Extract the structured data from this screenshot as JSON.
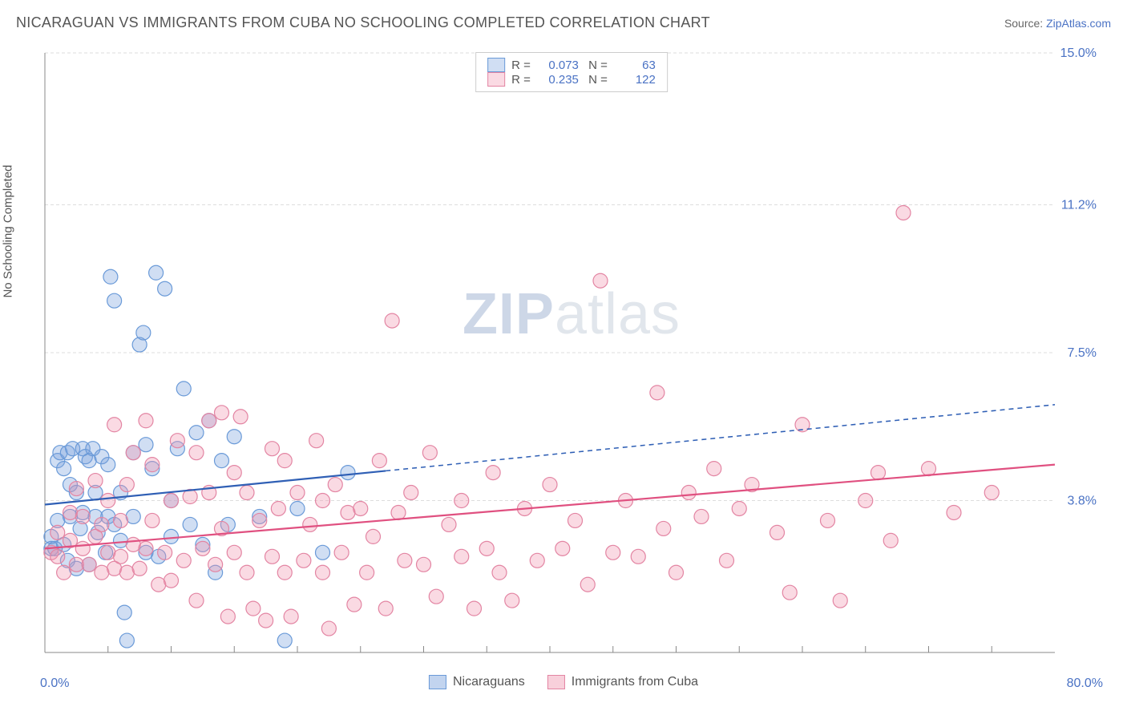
{
  "title": "NICARAGUAN VS IMMIGRANTS FROM CUBA NO SCHOOLING COMPLETED CORRELATION CHART",
  "source_label": "Source:",
  "source_name": "ZipAtlas.com",
  "y_axis_label": "No Schooling Completed",
  "watermark_bold": "ZIP",
  "watermark_light": "atlas",
  "chart": {
    "type": "scatter",
    "xlim": [
      0,
      80
    ],
    "ylim": [
      0,
      15
    ],
    "x_origin_label": "0.0%",
    "x_max_label": "80.0%",
    "y_ticks": [
      3.8,
      7.5,
      11.2,
      15.0
    ],
    "y_tick_labels": [
      "3.8%",
      "7.5%",
      "11.2%",
      "15.0%"
    ],
    "x_minor_ticks": [
      5,
      10,
      15,
      20,
      25,
      30,
      35,
      40,
      45,
      50,
      55,
      60,
      65,
      70,
      75
    ],
    "background_color": "#ffffff",
    "grid_color": "#dddddd",
    "axis_color": "#888888",
    "axis_label_color": "#4a72c4",
    "series": [
      {
        "name": "Nicaraguans",
        "color_fill": "rgba(120,160,220,0.35)",
        "color_stroke": "#6a9ad8",
        "r_value": "0.073",
        "n_value": "63",
        "marker_radius": 9,
        "trend": {
          "x1": 0,
          "y1": 3.7,
          "x2": 80,
          "y2": 6.2,
          "solid_until_x": 27,
          "color": "#2f5fb5",
          "width": 2.2,
          "dash": "6,5"
        },
        "points": [
          [
            0.5,
            2.6
          ],
          [
            0.5,
            2.9
          ],
          [
            0.8,
            2.6
          ],
          [
            1.0,
            4.8
          ],
          [
            1.0,
            3.3
          ],
          [
            1.2,
            5.0
          ],
          [
            1.5,
            2.7
          ],
          [
            1.5,
            4.6
          ],
          [
            1.8,
            2.3
          ],
          [
            1.8,
            5.0
          ],
          [
            2.0,
            4.2
          ],
          [
            2.0,
            3.4
          ],
          [
            2.2,
            5.1
          ],
          [
            2.5,
            4.0
          ],
          [
            2.5,
            2.1
          ],
          [
            2.8,
            3.1
          ],
          [
            3.0,
            5.1
          ],
          [
            3.0,
            3.5
          ],
          [
            3.2,
            4.9
          ],
          [
            3.5,
            2.2
          ],
          [
            3.5,
            4.8
          ],
          [
            3.8,
            5.1
          ],
          [
            4.0,
            3.4
          ],
          [
            4.0,
            4.0
          ],
          [
            4.2,
            3.0
          ],
          [
            4.5,
            4.9
          ],
          [
            4.8,
            2.5
          ],
          [
            5.0,
            3.4
          ],
          [
            5.0,
            4.7
          ],
          [
            5.2,
            9.4
          ],
          [
            5.5,
            8.8
          ],
          [
            5.5,
            3.2
          ],
          [
            6.0,
            4.0
          ],
          [
            6.0,
            2.8
          ],
          [
            6.3,
            1.0
          ],
          [
            6.5,
            0.3
          ],
          [
            7.0,
            3.4
          ],
          [
            7.0,
            5.0
          ],
          [
            7.5,
            7.7
          ],
          [
            7.8,
            8.0
          ],
          [
            8.0,
            2.5
          ],
          [
            8.0,
            5.2
          ],
          [
            8.5,
            4.6
          ],
          [
            8.8,
            9.5
          ],
          [
            9.0,
            2.4
          ],
          [
            9.5,
            9.1
          ],
          [
            10.0,
            3.8
          ],
          [
            10.0,
            2.9
          ],
          [
            10.5,
            5.1
          ],
          [
            11.0,
            6.6
          ],
          [
            11.5,
            3.2
          ],
          [
            12.0,
            5.5
          ],
          [
            12.5,
            2.7
          ],
          [
            13.0,
            5.8
          ],
          [
            13.5,
            2.0
          ],
          [
            14.0,
            4.8
          ],
          [
            14.5,
            3.2
          ],
          [
            15.0,
            5.4
          ],
          [
            17.0,
            3.4
          ],
          [
            19.0,
            0.3
          ],
          [
            20.0,
            3.6
          ],
          [
            22.0,
            2.5
          ],
          [
            24.0,
            4.5
          ]
        ]
      },
      {
        "name": "Immigrants from Cuba",
        "color_fill": "rgba(240,150,175,0.35)",
        "color_stroke": "#e385a3",
        "r_value": "0.235",
        "n_value": "122",
        "marker_radius": 9,
        "trend": {
          "x1": 0,
          "y1": 2.6,
          "x2": 80,
          "y2": 4.7,
          "solid_until_x": 80,
          "color": "#e05080",
          "width": 2.2,
          "dash": "0"
        },
        "points": [
          [
            0.5,
            2.5
          ],
          [
            1.0,
            3.0
          ],
          [
            1.0,
            2.4
          ],
          [
            1.5,
            2.0
          ],
          [
            2.0,
            2.8
          ],
          [
            2.0,
            3.5
          ],
          [
            2.5,
            2.2
          ],
          [
            2.5,
            4.1
          ],
          [
            3.0,
            2.6
          ],
          [
            3.0,
            3.4
          ],
          [
            3.5,
            2.2
          ],
          [
            4.0,
            2.9
          ],
          [
            4.0,
            4.3
          ],
          [
            4.5,
            2.0
          ],
          [
            4.5,
            3.2
          ],
          [
            5.0,
            2.5
          ],
          [
            5.0,
            3.8
          ],
          [
            5.5,
            2.1
          ],
          [
            5.5,
            5.7
          ],
          [
            6.0,
            2.4
          ],
          [
            6.0,
            3.3
          ],
          [
            6.5,
            4.2
          ],
          [
            6.5,
            2.0
          ],
          [
            7.0,
            2.7
          ],
          [
            7.0,
            5.0
          ],
          [
            7.5,
            2.1
          ],
          [
            8.0,
            2.6
          ],
          [
            8.0,
            5.8
          ],
          [
            8.5,
            3.3
          ],
          [
            8.5,
            4.7
          ],
          [
            9.0,
            1.7
          ],
          [
            9.5,
            2.5
          ],
          [
            10.0,
            3.8
          ],
          [
            10.0,
            1.8
          ],
          [
            10.5,
            5.3
          ],
          [
            11.0,
            2.3
          ],
          [
            11.5,
            3.9
          ],
          [
            12.0,
            1.3
          ],
          [
            12.0,
            5.0
          ],
          [
            12.5,
            2.6
          ],
          [
            13.0,
            4.0
          ],
          [
            13.0,
            5.8
          ],
          [
            13.5,
            2.2
          ],
          [
            14.0,
            3.1
          ],
          [
            14.0,
            6.0
          ],
          [
            14.5,
            0.9
          ],
          [
            15.0,
            4.5
          ],
          [
            15.0,
            2.5
          ],
          [
            15.5,
            5.9
          ],
          [
            16.0,
            2.0
          ],
          [
            16.0,
            4.0
          ],
          [
            16.5,
            1.1
          ],
          [
            17.0,
            3.3
          ],
          [
            17.5,
            0.8
          ],
          [
            18.0,
            2.4
          ],
          [
            18.0,
            5.1
          ],
          [
            18.5,
            3.6
          ],
          [
            19.0,
            2.0
          ],
          [
            19.0,
            4.8
          ],
          [
            19.5,
            0.9
          ],
          [
            20.0,
            4.0
          ],
          [
            20.5,
            2.3
          ],
          [
            21.0,
            3.2
          ],
          [
            21.5,
            5.3
          ],
          [
            22.0,
            2.0
          ],
          [
            22.0,
            3.8
          ],
          [
            22.5,
            0.6
          ],
          [
            23.0,
            4.2
          ],
          [
            23.5,
            2.5
          ],
          [
            24.0,
            3.5
          ],
          [
            24.5,
            1.2
          ],
          [
            25.0,
            3.6
          ],
          [
            25.5,
            2.0
          ],
          [
            26.0,
            2.9
          ],
          [
            26.5,
            4.8
          ],
          [
            27.0,
            1.1
          ],
          [
            27.5,
            8.3
          ],
          [
            28.0,
            3.5
          ],
          [
            28.5,
            2.3
          ],
          [
            29.0,
            4.0
          ],
          [
            30.0,
            2.2
          ],
          [
            30.5,
            5.0
          ],
          [
            31.0,
            1.4
          ],
          [
            32.0,
            3.2
          ],
          [
            33.0,
            2.4
          ],
          [
            33.0,
            3.8
          ],
          [
            34.0,
            1.1
          ],
          [
            35.0,
            2.6
          ],
          [
            35.5,
            4.5
          ],
          [
            36.0,
            2.0
          ],
          [
            37.0,
            1.3
          ],
          [
            38.0,
            3.6
          ],
          [
            39.0,
            2.3
          ],
          [
            40.0,
            4.2
          ],
          [
            41.0,
            2.6
          ],
          [
            42.0,
            3.3
          ],
          [
            43.0,
            1.7
          ],
          [
            44.0,
            9.3
          ],
          [
            45.0,
            2.5
          ],
          [
            46.0,
            3.8
          ],
          [
            47.0,
            2.4
          ],
          [
            48.5,
            6.5
          ],
          [
            49.0,
            3.1
          ],
          [
            50.0,
            2.0
          ],
          [
            51.0,
            4.0
          ],
          [
            52.0,
            3.4
          ],
          [
            53.0,
            4.6
          ],
          [
            54.0,
            2.3
          ],
          [
            55.0,
            3.6
          ],
          [
            56.0,
            4.2
          ],
          [
            58.0,
            3.0
          ],
          [
            59.0,
            1.5
          ],
          [
            60.0,
            5.7
          ],
          [
            62.0,
            3.3
          ],
          [
            63.0,
            1.3
          ],
          [
            65.0,
            3.8
          ],
          [
            66.0,
            4.5
          ],
          [
            67.0,
            2.8
          ],
          [
            68.0,
            11.0
          ],
          [
            70.0,
            4.6
          ],
          [
            72.0,
            3.5
          ],
          [
            75.0,
            4.0
          ]
        ]
      }
    ]
  },
  "legend_bottom": [
    {
      "label": "Nicaraguans",
      "fill": "rgba(120,160,220,0.45)",
      "stroke": "#6a9ad8"
    },
    {
      "label": "Immigrants from Cuba",
      "fill": "rgba(240,150,175,0.45)",
      "stroke": "#e385a3"
    }
  ]
}
